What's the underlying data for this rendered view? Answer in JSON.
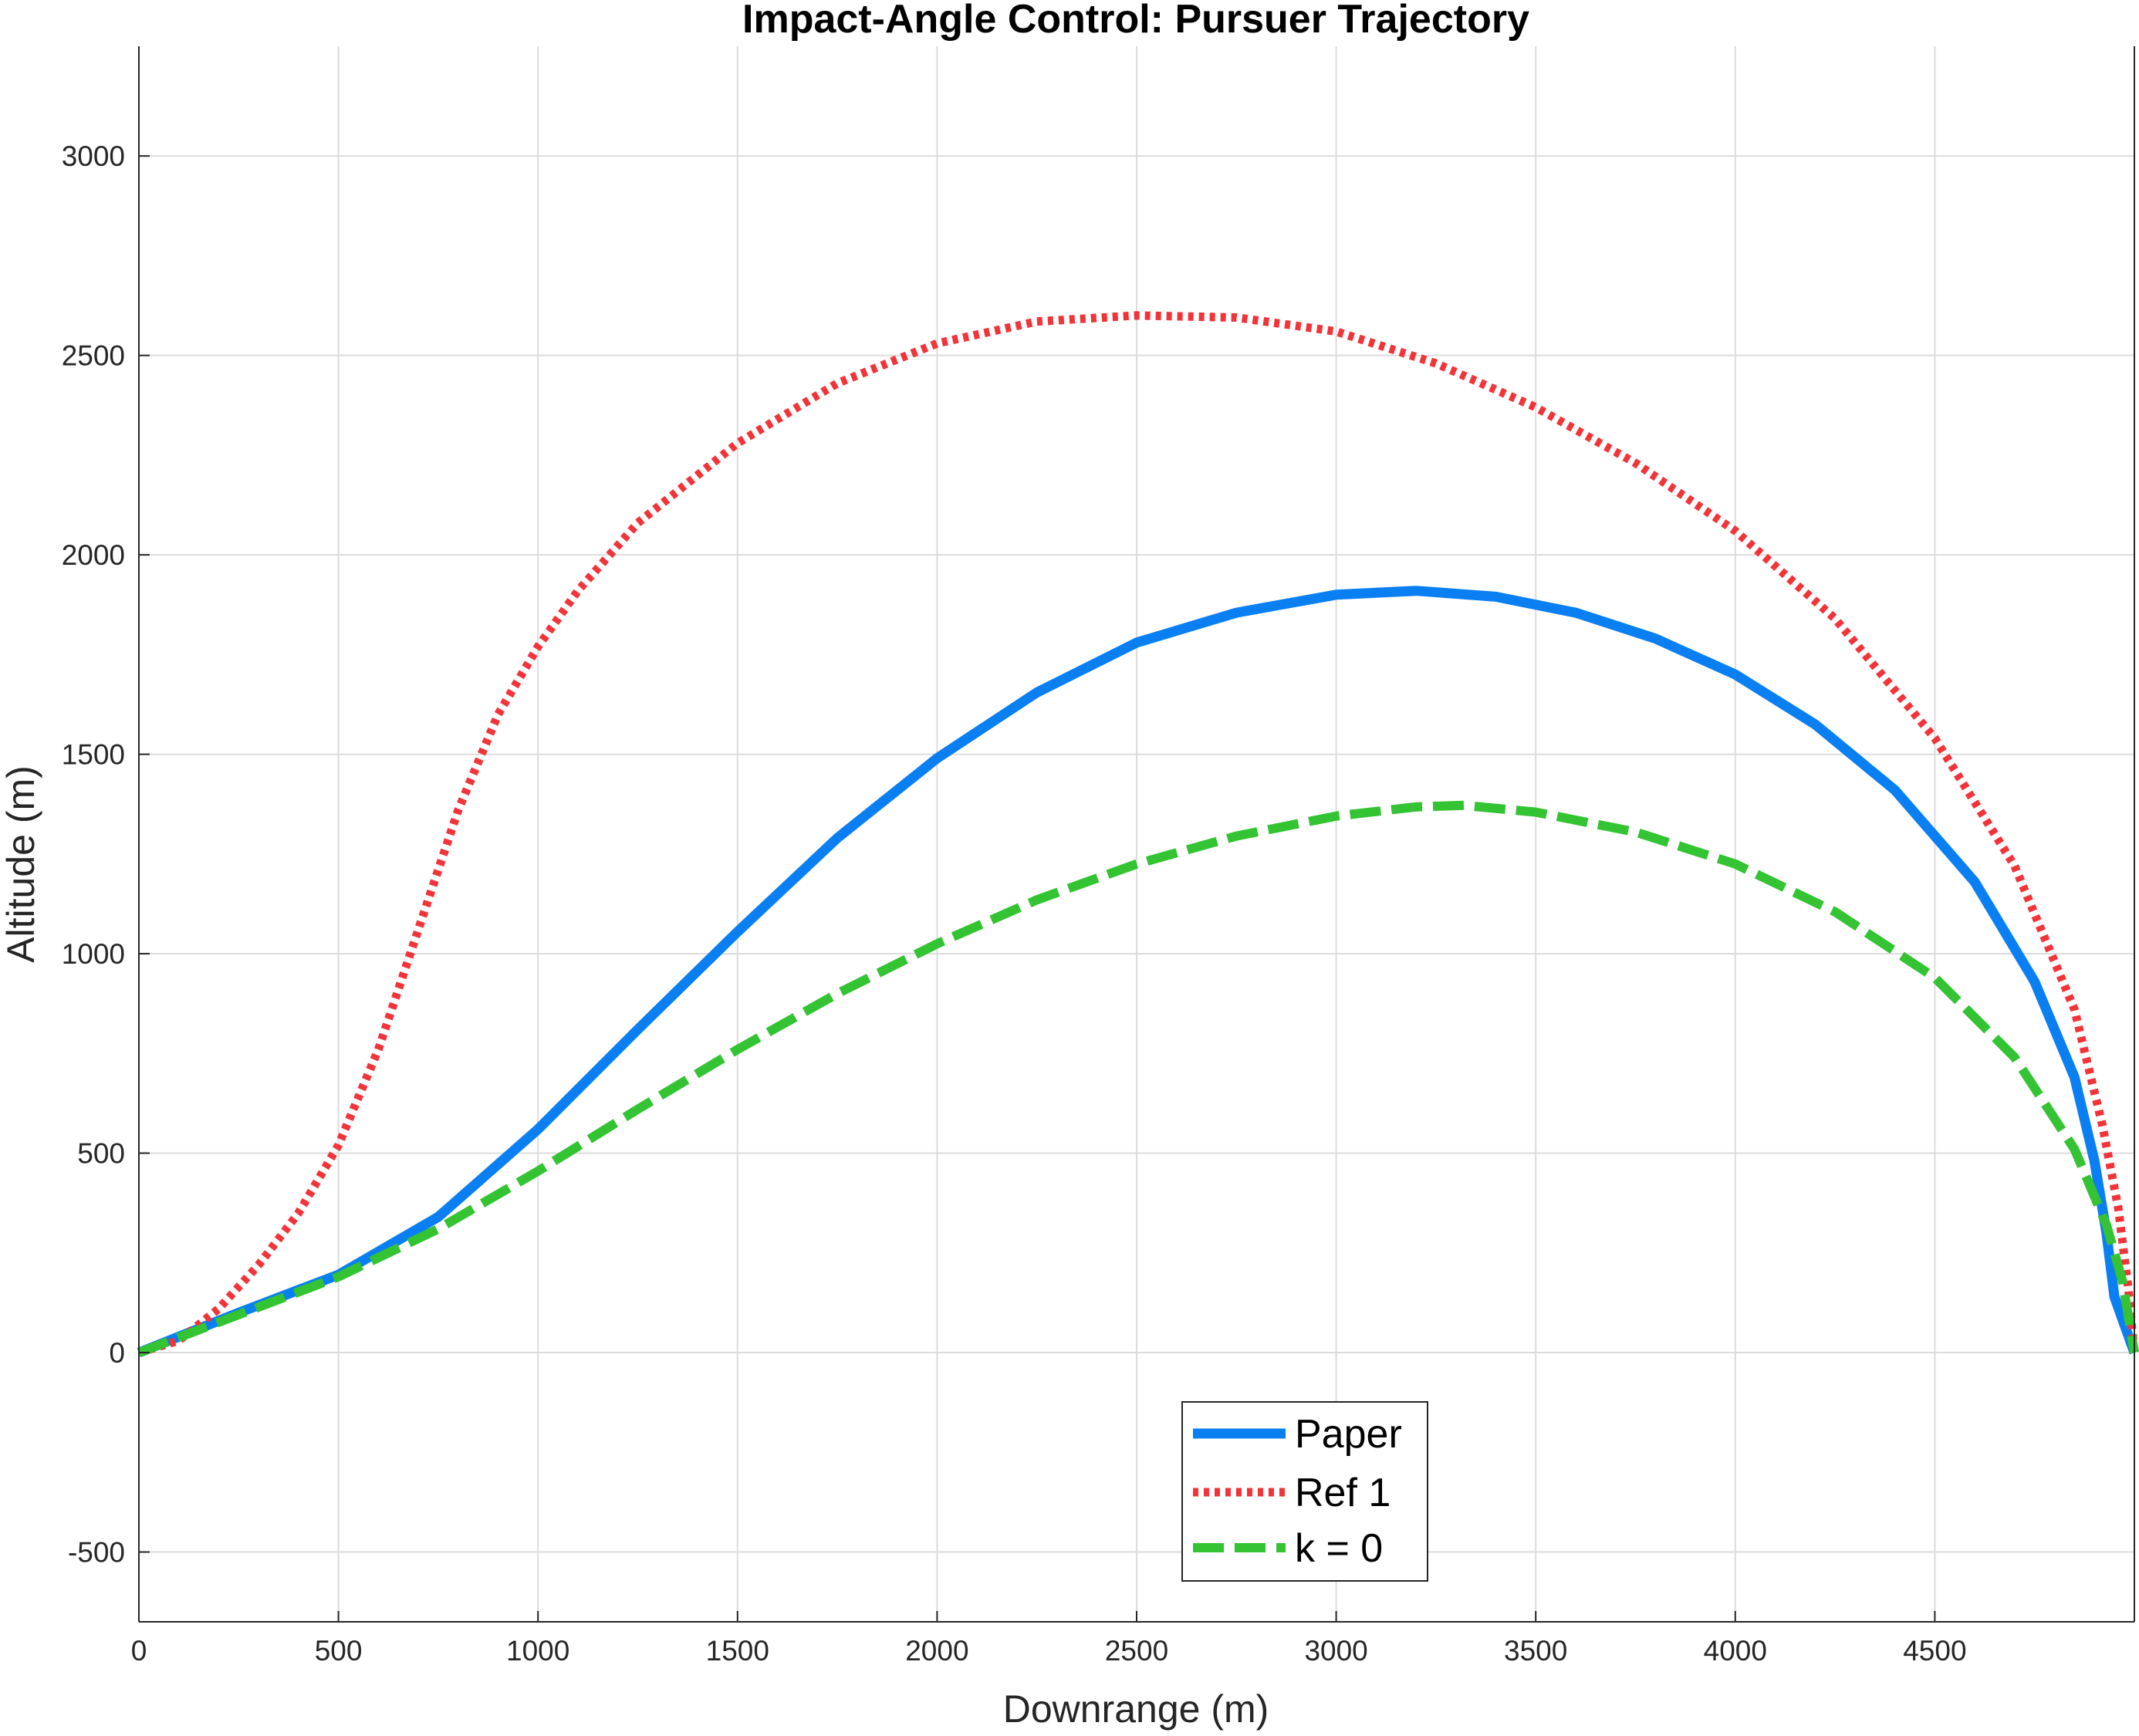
{
  "chart_data": {
    "type": "line",
    "title": "Impact-Angle Control: Pursuer Trajectory",
    "xlabel": "Downrange (m)",
    "ylabel": "Altitude (m)",
    "xlim": [
      0,
      5000
    ],
    "ylim": [
      -675,
      3275
    ],
    "xticks": [
      0,
      500,
      1000,
      1500,
      2000,
      2500,
      3000,
      3500,
      4000,
      4500
    ],
    "xtick_labels": [
      "0",
      "500",
      "1000",
      "1500",
      "2000",
      "2500",
      "3000",
      "3500",
      "4000",
      "4500"
    ],
    "yticks": [
      -500,
      0,
      500,
      1000,
      1500,
      2000,
      2500,
      3000
    ],
    "ytick_labels": [
      "-500",
      "0",
      "500",
      "1000",
      "1500",
      "2000",
      "2500",
      "3000"
    ],
    "grid": true,
    "legend_position": "bottom-center",
    "series": [
      {
        "name": "Paper",
        "color": "#0A7FF2",
        "style": "solid",
        "x": [
          0,
          250,
          500,
          750,
          1000,
          1250,
          1500,
          1750,
          2000,
          2250,
          2500,
          2750,
          3000,
          3200,
          3400,
          3600,
          3800,
          4000,
          4200,
          4400,
          4600,
          4750,
          4850,
          4900,
          4930,
          4950,
          5000
        ],
        "y": [
          0,
          100,
          195,
          340,
          560,
          810,
          1055,
          1290,
          1490,
          1655,
          1780,
          1855,
          1900,
          1910,
          1895,
          1855,
          1790,
          1700,
          1575,
          1410,
          1180,
          930,
          690,
          480,
          300,
          140,
          0
        ]
      },
      {
        "name": "Ref 1",
        "color": "#F0343A",
        "style": "dotted",
        "x": [
          0,
          100,
          200,
          300,
          400,
          500,
          600,
          700,
          800,
          900,
          1000,
          1100,
          1250,
          1500,
          1750,
          2000,
          2250,
          2500,
          2750,
          3000,
          3250,
          3500,
          3750,
          4000,
          4250,
          4500,
          4700,
          4850,
          4920,
          4960,
          4985,
          5000
        ],
        "y": [
          0,
          30,
          110,
          220,
          350,
          520,
          760,
          1060,
          1360,
          1600,
          1770,
          1910,
          2080,
          2280,
          2430,
          2530,
          2585,
          2600,
          2595,
          2560,
          2480,
          2370,
          2230,
          2060,
          1840,
          1540,
          1220,
          860,
          570,
          360,
          160,
          0
        ]
      },
      {
        "name": "k = 0",
        "color": "#33C333",
        "style": "dashed",
        "x": [
          0,
          250,
          500,
          750,
          1000,
          1250,
          1500,
          1750,
          2000,
          2250,
          2500,
          2750,
          3000,
          3200,
          3320,
          3500,
          3750,
          4000,
          4250,
          4500,
          4700,
          4850,
          4930,
          4970,
          5000
        ],
        "y": [
          0,
          95,
          190,
          310,
          455,
          610,
          760,
          900,
          1025,
          1135,
          1225,
          1295,
          1345,
          1368,
          1372,
          1355,
          1305,
          1225,
          1105,
          940,
          740,
          510,
          320,
          180,
          0
        ]
      }
    ]
  }
}
